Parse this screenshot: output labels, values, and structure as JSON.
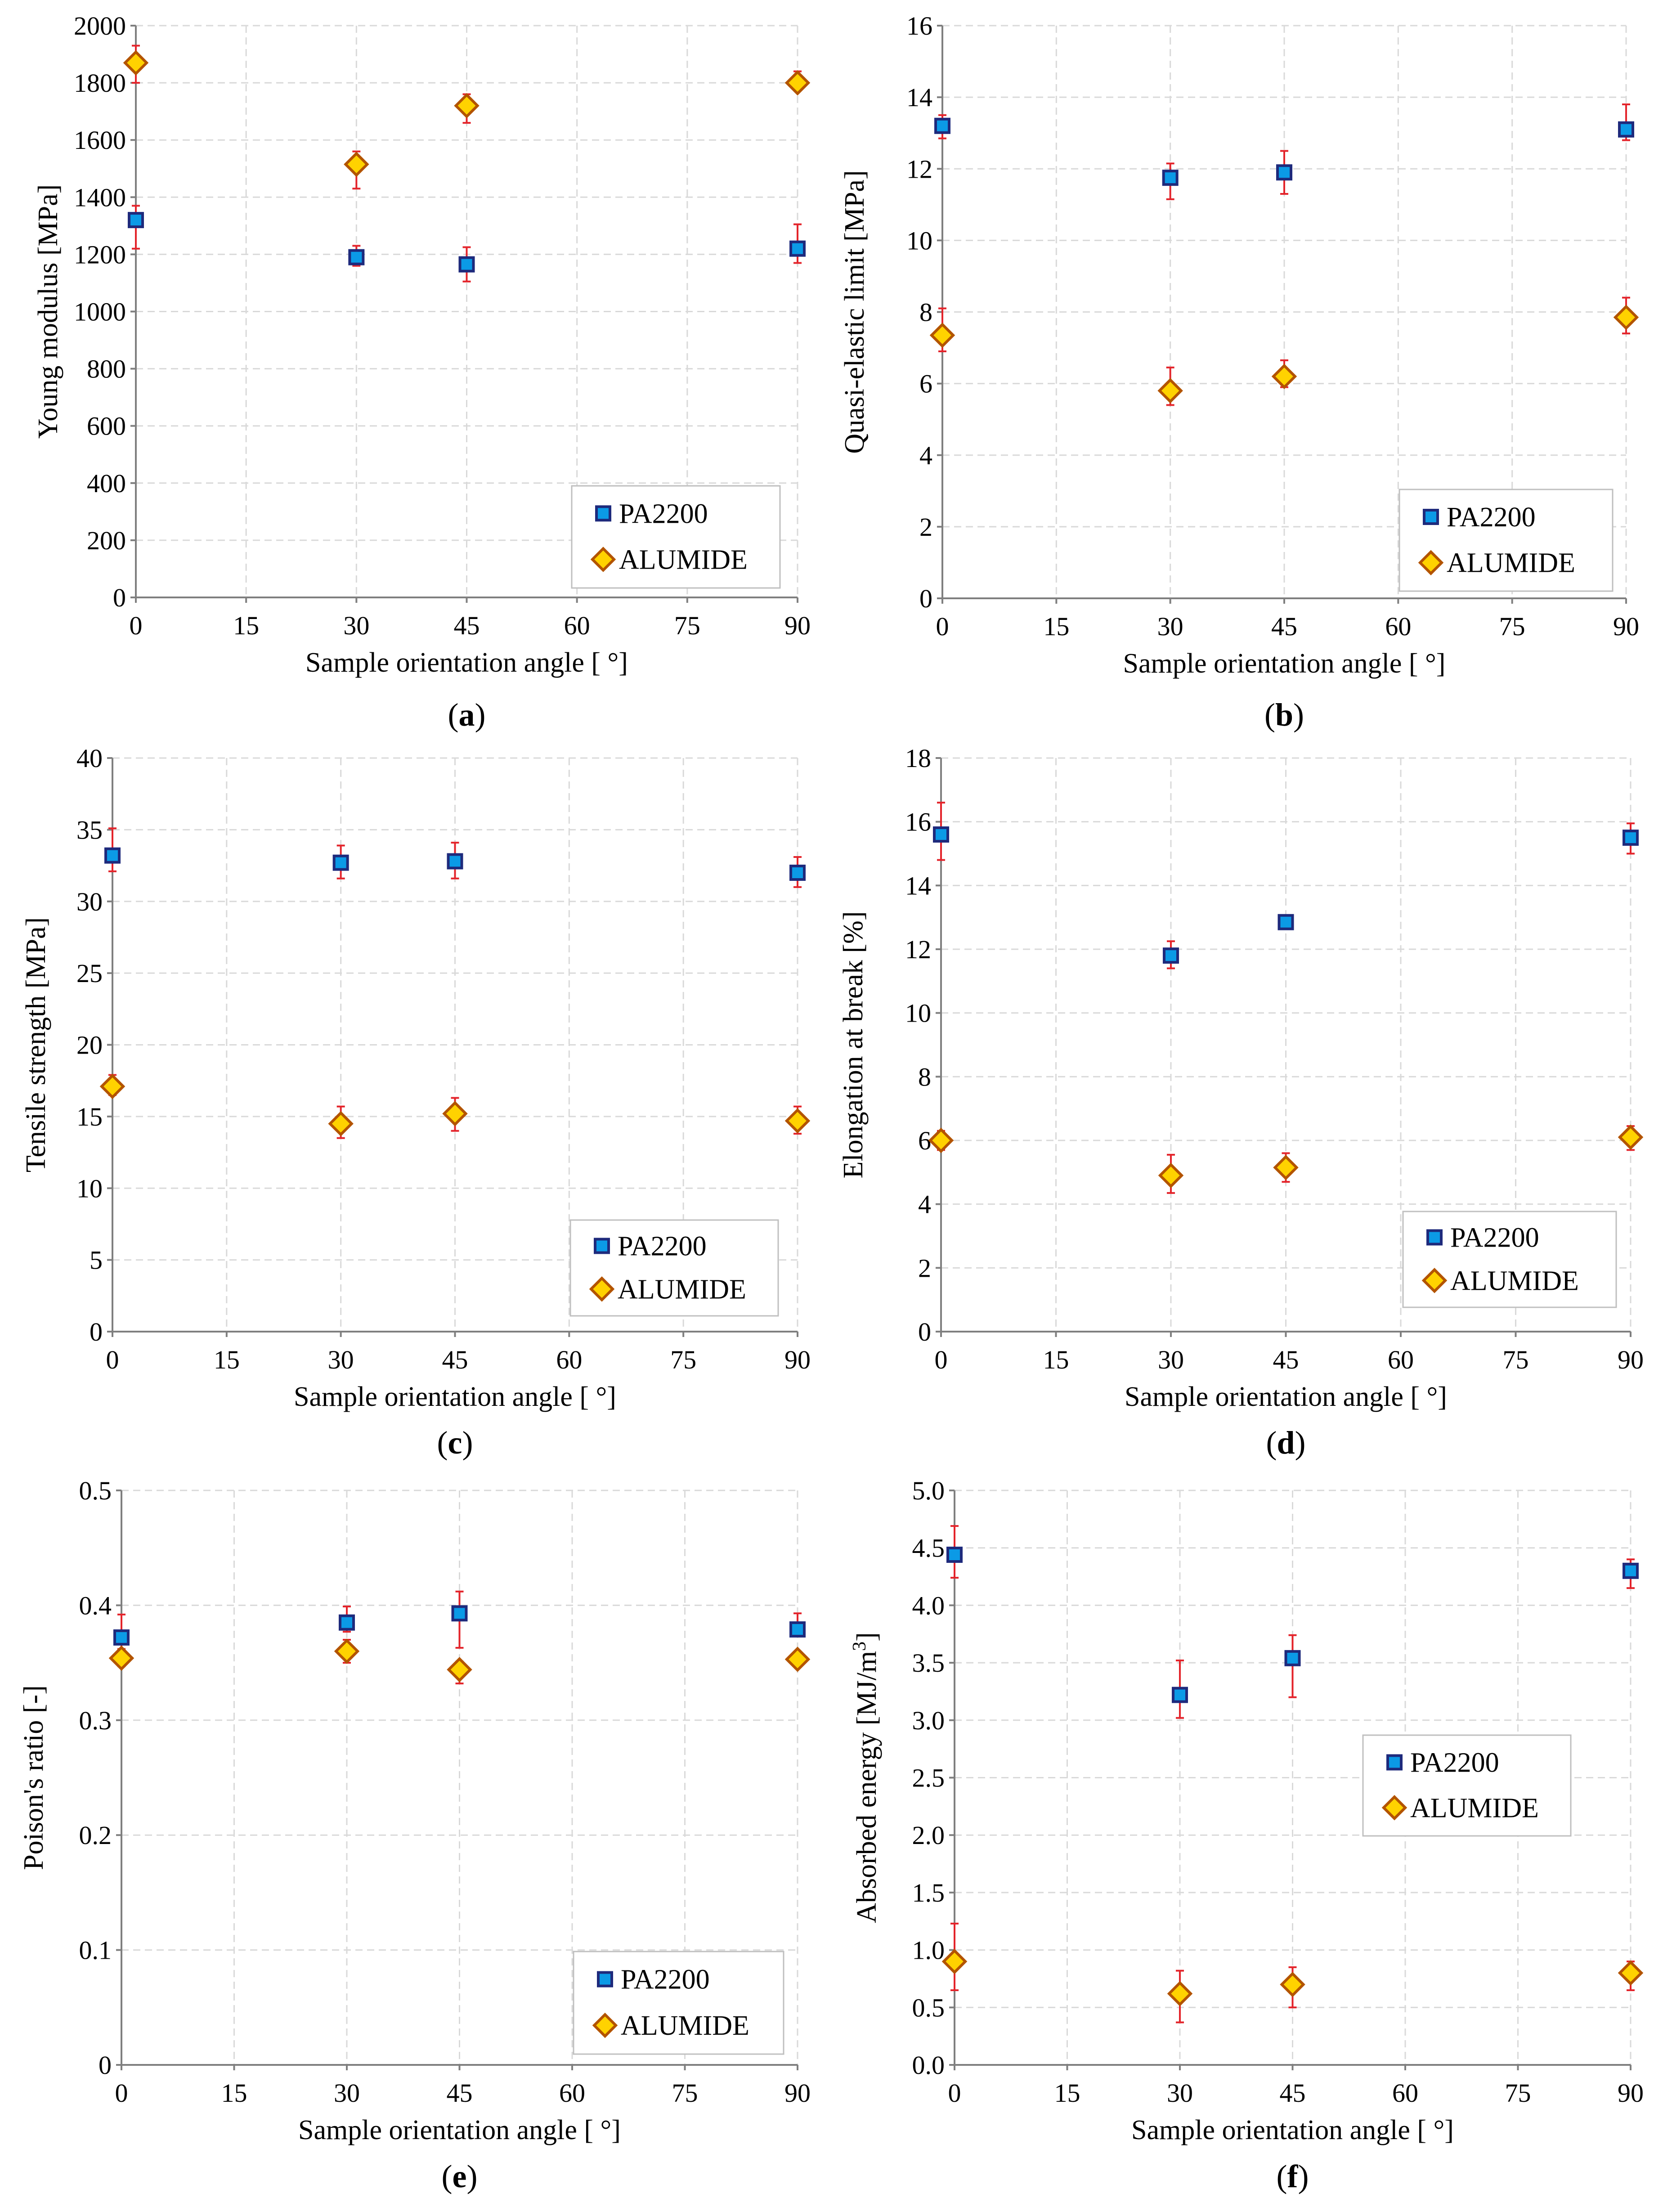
{
  "chart_data": [
    {
      "id": "a",
      "type": "scatter",
      "panel_label": "a",
      "title": "",
      "xlabel": "Sample orientation angle [ °]",
      "ylabel": "Young modulus [MPa]",
      "xlim": [
        0,
        90
      ],
      "ylim": [
        0,
        2000
      ],
      "xticks": [
        0,
        15,
        30,
        45,
        60,
        75,
        90
      ],
      "xtick_labels": [
        "0",
        "15",
        "30",
        "45",
        "60",
        "75",
        "90"
      ],
      "yticks": [
        0,
        200,
        400,
        600,
        800,
        1000,
        1200,
        1400,
        1600,
        1800,
        2000
      ],
      "ytick_labels": [
        "0",
        "200",
        "400",
        "600",
        "800",
        "1000",
        "1200",
        "1400",
        "1600",
        "1800",
        "2000"
      ],
      "grid": true,
      "legend_position": "bottom-right",
      "series": [
        {
          "name": "PA2200",
          "marker": "square",
          "x": [
            0,
            30,
            45,
            90
          ],
          "y": [
            1320,
            1190,
            1165,
            1220
          ],
          "err_low": [
            100,
            30,
            60,
            50
          ],
          "err_high": [
            50,
            40,
            60,
            85
          ]
        },
        {
          "name": "ALUMIDE",
          "marker": "diamond",
          "x": [
            0,
            30,
            45,
            90
          ],
          "y": [
            1870,
            1515,
            1720,
            1800
          ],
          "err_low": [
            70,
            85,
            60,
            20
          ],
          "err_high": [
            60,
            45,
            40,
            40
          ]
        }
      ]
    },
    {
      "id": "b",
      "type": "scatter",
      "panel_label": "b",
      "title": "",
      "xlabel": "Sample orientation angle [ °]",
      "ylabel": "Quasi-elastic limit [MPa]",
      "xlim": [
        0,
        90
      ],
      "ylim": [
        0,
        16
      ],
      "xticks": [
        0,
        15,
        30,
        45,
        60,
        75,
        90
      ],
      "xtick_labels": [
        "0",
        "15",
        "30",
        "45",
        "60",
        "75",
        "90"
      ],
      "yticks": [
        0,
        2,
        4,
        6,
        8,
        10,
        12,
        14,
        16
      ],
      "ytick_labels": [
        "0",
        "2",
        "4",
        "6",
        "8",
        "10",
        "12",
        "14",
        "16"
      ],
      "grid": true,
      "legend_position": "bottom-right",
      "series": [
        {
          "name": "PA2200",
          "marker": "square",
          "x": [
            0,
            30,
            45,
            90
          ],
          "y": [
            13.2,
            11.75,
            11.9,
            13.1
          ],
          "err_low": [
            0.35,
            0.6,
            0.6,
            0.3
          ],
          "err_high": [
            0.3,
            0.4,
            0.6,
            0.7
          ]
        },
        {
          "name": "ALUMIDE",
          "marker": "diamond",
          "x": [
            0,
            30,
            45,
            90
          ],
          "y": [
            7.35,
            5.8,
            6.2,
            7.85
          ],
          "err_low": [
            0.45,
            0.4,
            0.3,
            0.45
          ],
          "err_high": [
            0.75,
            0.65,
            0.45,
            0.55
          ]
        }
      ]
    },
    {
      "id": "c",
      "type": "scatter",
      "panel_label": "c",
      "title": "",
      "xlabel": "Sample orientation angle [ °]",
      "ylabel": "Tensile strength [MPa]",
      "xlim": [
        0,
        90
      ],
      "ylim": [
        0,
        40
      ],
      "xticks": [
        0,
        15,
        30,
        45,
        60,
        75,
        90
      ],
      "xtick_labels": [
        "0",
        "15",
        "30",
        "45",
        "60",
        "75",
        "90"
      ],
      "yticks": [
        0,
        5,
        10,
        15,
        20,
        25,
        30,
        35,
        40
      ],
      "ytick_labels": [
        "0",
        "5",
        "10",
        "15",
        "20",
        "25",
        "30",
        "35",
        "40"
      ],
      "grid": true,
      "legend_position": "bottom-right",
      "series": [
        {
          "name": "PA2200",
          "marker": "square",
          "x": [
            0,
            30,
            45,
            90
          ],
          "y": [
            33.2,
            32.7,
            32.8,
            32.0
          ],
          "err_low": [
            1.1,
            1.1,
            1.2,
            1.0
          ],
          "err_high": [
            1.9,
            1.2,
            1.3,
            1.1
          ]
        },
        {
          "name": "ALUMIDE",
          "marker": "diamond",
          "x": [
            0,
            30,
            45,
            90
          ],
          "y": [
            17.1,
            14.5,
            15.2,
            14.7
          ],
          "err_low": [
            0.6,
            1.0,
            1.2,
            0.9
          ],
          "err_high": [
            0.8,
            1.2,
            1.1,
            1.0
          ]
        }
      ]
    },
    {
      "id": "d",
      "type": "scatter",
      "panel_label": "d",
      "title": "",
      "xlabel": "Sample orientation angle [ °]",
      "ylabel": "Elongation at break [%]",
      "xlim": [
        0,
        90
      ],
      "ylim": [
        0,
        18
      ],
      "xticks": [
        0,
        15,
        30,
        45,
        60,
        75,
        90
      ],
      "xtick_labels": [
        "0",
        "15",
        "30",
        "45",
        "60",
        "75",
        "90"
      ],
      "yticks": [
        0,
        2,
        4,
        6,
        8,
        10,
        12,
        14,
        16,
        18
      ],
      "ytick_labels": [
        "0",
        "2",
        "4",
        "6",
        "8",
        "10",
        "12",
        "14",
        "16",
        "18"
      ],
      "grid": true,
      "legend_position": "bottom-right",
      "series": [
        {
          "name": "PA2200",
          "marker": "square",
          "x": [
            0,
            30,
            45,
            90
          ],
          "y": [
            15.6,
            11.8,
            12.85,
            15.5
          ],
          "err_low": [
            0.8,
            0.4,
            0.15,
            0.5
          ],
          "err_high": [
            1.0,
            0.45,
            0.1,
            0.45
          ]
        },
        {
          "name": "ALUMIDE",
          "marker": "diamond",
          "x": [
            0,
            30,
            45,
            90
          ],
          "y": [
            6.0,
            4.9,
            5.15,
            6.1
          ],
          "err_low": [
            0.3,
            0.55,
            0.45,
            0.4
          ],
          "err_high": [
            0.3,
            0.65,
            0.45,
            0.35
          ]
        }
      ]
    },
    {
      "id": "e",
      "type": "scatter",
      "panel_label": "e",
      "title": "",
      "xlabel": "Sample orientation angle [ °]",
      "ylabel": "Poison's ratio [-]",
      "xlim": [
        0,
        90
      ],
      "ylim": [
        0,
        0.5
      ],
      "xticks": [
        0,
        15,
        30,
        45,
        60,
        75,
        90
      ],
      "xtick_labels": [
        "0",
        "15",
        "30",
        "45",
        "60",
        "75",
        "90"
      ],
      "yticks": [
        0,
        0.1,
        0.2,
        0.3,
        0.4,
        0.5
      ],
      "ytick_labels": [
        "0",
        "0.1",
        "0.2",
        "0.3",
        "0.4",
        "0.5"
      ],
      "grid": true,
      "legend_position": "bottom-right",
      "series": [
        {
          "name": "PA2200",
          "marker": "square",
          "x": [
            0,
            30,
            45,
            90
          ],
          "y": [
            0.372,
            0.385,
            0.393,
            0.379
          ],
          "err_low": [
            0.01,
            0.008,
            0.03,
            0.006
          ],
          "err_high": [
            0.02,
            0.014,
            0.019,
            0.014
          ]
        },
        {
          "name": "ALUMIDE",
          "marker": "diamond",
          "x": [
            0,
            30,
            45,
            90
          ],
          "y": [
            0.354,
            0.36,
            0.344,
            0.353
          ],
          "err_low": [
            0.007,
            0.01,
            0.012,
            0.006
          ],
          "err_high": [
            0.006,
            0.01,
            0.007,
            0.006
          ]
        }
      ]
    },
    {
      "id": "f",
      "type": "scatter",
      "panel_label": "f",
      "title": "",
      "xlabel": "Sample orientation angle [ °]",
      "ylabel": "Absorbed energy [MJ/m³]",
      "xlim": [
        0,
        90
      ],
      "ylim": [
        0,
        5
      ],
      "xticks": [
        0,
        15,
        30,
        45,
        60,
        75,
        90
      ],
      "xtick_labels": [
        "0",
        "15",
        "30",
        "45",
        "60",
        "75",
        "90"
      ],
      "yticks": [
        0,
        0.5,
        1,
        1.5,
        2,
        2.5,
        3,
        3.5,
        4,
        4.5,
        5
      ],
      "ytick_labels": [
        "0.0",
        "0.5",
        "1.0",
        "1.5",
        "2.0",
        "2.5",
        "3.0",
        "3.5",
        "4.0",
        "4.5",
        "5.0"
      ],
      "grid": true,
      "legend_position": "center-right",
      "series": [
        {
          "name": "PA2200",
          "marker": "square",
          "x": [
            0,
            30,
            45,
            90
          ],
          "y": [
            4.44,
            3.22,
            3.54,
            4.3
          ],
          "err_low": [
            0.2,
            0.2,
            0.34,
            0.15
          ],
          "err_high": [
            0.25,
            0.3,
            0.2,
            0.1
          ]
        },
        {
          "name": "ALUMIDE",
          "marker": "diamond",
          "x": [
            0,
            30,
            45,
            90
          ],
          "y": [
            0.9,
            0.62,
            0.7,
            0.8
          ],
          "err_low": [
            0.25,
            0.25,
            0.2,
            0.15
          ],
          "err_high": [
            0.33,
            0.2,
            0.15,
            0.1
          ]
        }
      ]
    }
  ],
  "colors": {
    "pa2200_fill": "#0b9ae6",
    "pa2200_stroke": "#1e2a7c",
    "alumide_fill": "#ffd200",
    "alumide_stroke": "#b35400",
    "error_bar": "#e3242b",
    "grid": "#d9d9d9",
    "axis": "#7f7f7f",
    "legend_border": "#bfbfbf",
    "text": "#000000"
  }
}
